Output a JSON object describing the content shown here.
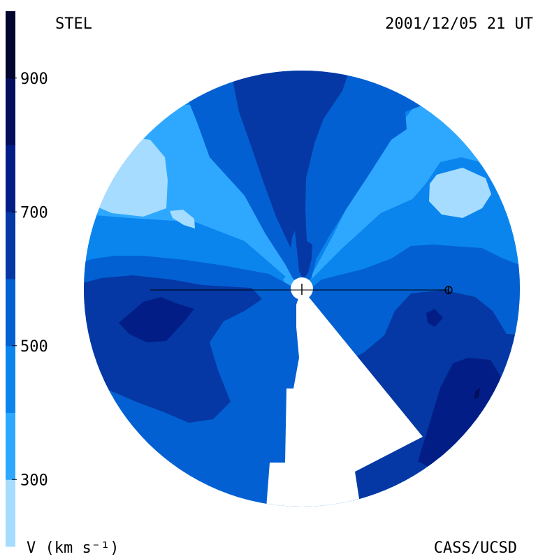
{
  "header": {
    "instrument": "STEL",
    "timestamp": "2001/12/05 21 UT"
  },
  "footer": {
    "credit": "CASS/UCSD"
  },
  "chart_data": {
    "type": "heatmap",
    "colorbar": {
      "label": "V (km s⁻¹)",
      "range": [
        200,
        1000
      ],
      "bands": [
        {
          "min": 200,
          "max": 300,
          "color": "#a6dcff"
        },
        {
          "min": 300,
          "max": 400,
          "color": "#2ea8ff"
        },
        {
          "min": 400,
          "max": 500,
          "color": "#0a85ee"
        },
        {
          "min": 500,
          "max": 600,
          "color": "#0360d2"
        },
        {
          "min": 600,
          "max": 700,
          "color": "#0538a4"
        },
        {
          "min": 700,
          "max": 800,
          "color": "#021e86"
        },
        {
          "min": 800,
          "max": 900,
          "color": "#030e5c"
        },
        {
          "min": 900,
          "max": 1000,
          "color": "#02052e"
        }
      ],
      "ticks": [
        {
          "value": 300,
          "label": "300"
        },
        {
          "value": 500,
          "label": "500"
        },
        {
          "value": 700,
          "label": "700"
        },
        {
          "value": 900,
          "label": "900"
        }
      ]
    }
  }
}
